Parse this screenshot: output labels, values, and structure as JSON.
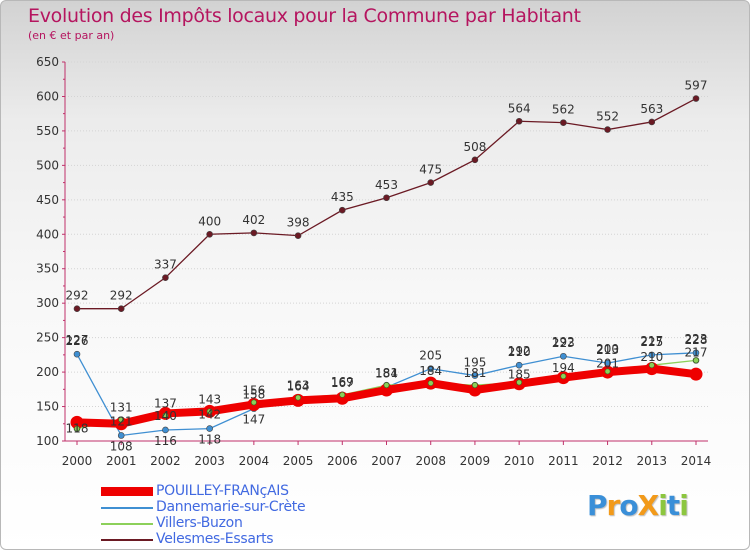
{
  "header": {
    "title": "Evolution des Impôts locaux pour la Commune par Habitant",
    "subtitle": "(en € et par an)"
  },
  "logo": {
    "text": "ProXiti",
    "letters": [
      {
        "ch": "P",
        "color": "#3a8fd8"
      },
      {
        "ch": "r",
        "color": "#f29a1a"
      },
      {
        "ch": "o",
        "color": "#3a8fd8"
      },
      {
        "ch": "X",
        "color": "#f29a1a"
      },
      {
        "ch": "i",
        "color": "#8cc63f"
      },
      {
        "ch": "t",
        "color": "#3a8fd8"
      },
      {
        "ch": "i",
        "color": "#8cc63f"
      }
    ]
  },
  "chart_data": {
    "type": "line",
    "title": "Evolution des Impôts locaux pour la Commune par Habitant",
    "subtitle": "(en € et par an)",
    "xlabel": "",
    "ylabel": "",
    "ylim": [
      100,
      650
    ],
    "yticks": [
      100,
      150,
      200,
      250,
      300,
      350,
      400,
      450,
      500,
      550,
      600,
      650
    ],
    "categories": [
      "2000",
      "2001",
      "2002",
      "2003",
      "2004",
      "2005",
      "2006",
      "2007",
      "2008",
      "2009",
      "2010",
      "2011",
      "2012",
      "2013",
      "2014"
    ],
    "series": [
      {
        "name": "POUILLEY-FRANçAIS",
        "color": "#ee0000",
        "values": [
          127,
          125,
          140,
          143,
          153,
          159,
          162,
          174,
          184,
          174,
          183,
          192,
          200,
          205,
          197
        ],
        "labels": [
          "",
          "",
          "",
          "",
          "",
          "",
          "",
          "",
          "",
          "",
          "",
          "",
          "",
          "",
          ""
        ]
      },
      {
        "name": "Dannemarie-sur-Crète",
        "color": "#3f8fd2",
        "values": [
          226,
          108,
          116,
          118,
          147,
          159,
          165,
          178,
          205,
          195,
          210,
          223,
          213,
          225,
          228
        ],
        "labels": [
          "226",
          "108",
          "116",
          "118",
          "147",
          "",
          "",
          "",
          "205",
          "195",
          "210",
          "223",
          "213",
          "225",
          "228"
        ]
      },
      {
        "name": "Villers-Buzon",
        "color": "#8cd05a",
        "values": [
          118,
          131,
          137,
          143,
          156,
          163,
          167,
          181,
          184,
          181,
          185,
          194,
          201,
          210,
          217
        ],
        "labels": [
          "118",
          "131",
          "137",
          "143",
          "156",
          "163",
          "167",
          "181",
          "184",
          "181",
          "185",
          "194",
          "201",
          "210",
          "217"
        ]
      },
      {
        "name": "Velesmes-Essarts",
        "color": "#6b1a24",
        "values": [
          292,
          292,
          337,
          400,
          402,
          398,
          435,
          453,
          475,
          508,
          564,
          562,
          552,
          563,
          597
        ],
        "labels": [
          "292",
          "292",
          "337",
          "400",
          "402",
          "398",
          "435",
          "453",
          "475",
          "508",
          "564",
          "562",
          "552",
          "563",
          "597"
        ]
      }
    ],
    "extra_labels": [
      {
        "series": "Dannemarie-sur-Crète",
        "index": 2,
        "text": "140"
      },
      {
        "series": "Dannemarie-sur-Crète",
        "index": 3,
        "text": "142"
      },
      {
        "series": "Dannemarie-sur-Crète",
        "index": 4,
        "text": "158"
      },
      {
        "series": "Dannemarie-sur-Crète",
        "index": 5,
        "text": "164"
      },
      {
        "series": "Dannemarie-sur-Crète",
        "index": 6,
        "text": "169"
      },
      {
        "series": "Dannemarie-sur-Crète",
        "index": 7,
        "text": "184"
      },
      {
        "series": "Dannemarie-sur-Crète",
        "index": 10,
        "text": "192"
      },
      {
        "series": "Dannemarie-sur-Crète",
        "index": 11,
        "text": "192"
      },
      {
        "series": "Dannemarie-sur-Crète",
        "index": 12,
        "text": "200"
      },
      {
        "series": "Dannemarie-sur-Crète",
        "index": 13,
        "text": "217"
      },
      {
        "series": "Dannemarie-sur-Crète",
        "index": 14,
        "text": "223"
      },
      {
        "series": "Dannemarie-sur-Crète",
        "index": 1,
        "text": "121"
      },
      {
        "series": "Dannemarie-sur-Crète",
        "index": 0,
        "text": "127"
      }
    ]
  }
}
